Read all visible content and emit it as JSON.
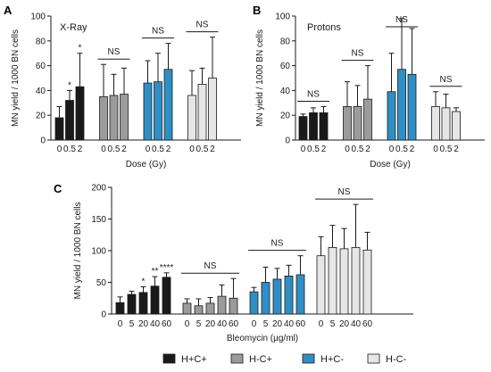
{
  "palette": {
    "black": "#1a1a1a",
    "gray": "#9b9b9b",
    "blue": "#2e8fc6",
    "light": "#e6e6e6",
    "stroke": "#1a1a1a"
  },
  "legend": [
    {
      "label": "H+C+",
      "color": "#1a1a1a"
    },
    {
      "label": "H-C+",
      "color": "#9b9b9b"
    },
    {
      "label": "H+C-",
      "color": "#2e8fc6"
    },
    {
      "label": "H-C-",
      "color": "#e6e6e6"
    }
  ],
  "chart_data": [
    {
      "panel": "A",
      "type": "bar",
      "title": "X-Ray",
      "xlabel": "Dose (Gy)",
      "ylabel": "MN yield / 1000 BN cells",
      "ylim": [
        0,
        100
      ],
      "yticks": [
        0,
        20,
        40,
        60,
        80,
        100
      ],
      "categories": [
        "0",
        "0.5",
        "2"
      ],
      "series": [
        {
          "name": "H+C+",
          "values": [
            18,
            32,
            43
          ],
          "err": [
            9,
            8,
            27
          ],
          "sig": [
            "",
            "*",
            "*"
          ]
        },
        {
          "name": "H-C+",
          "values": [
            35,
            36,
            37
          ],
          "err": [
            26,
            17,
            21
          ],
          "sig": [
            "",
            "",
            ""
          ]
        },
        {
          "name": "H+C-",
          "values": [
            46,
            47,
            57
          ],
          "err": [
            18,
            23,
            21
          ],
          "sig": [
            "",
            "",
            ""
          ]
        },
        {
          "name": "H-C-",
          "values": [
            36,
            45,
            50
          ],
          "err": [
            20,
            13,
            33
          ],
          "sig": [
            "",
            "",
            ""
          ]
        }
      ],
      "group_labels": [
        "",
        "NS",
        "NS",
        "NS"
      ]
    },
    {
      "panel": "B",
      "type": "bar",
      "title": "Protons",
      "xlabel": "Dose (Gy)",
      "ylabel": "MN yield / 1000 BN cells",
      "ylim": [
        0,
        100
      ],
      "yticks": [
        0,
        20,
        40,
        60,
        80,
        100
      ],
      "categories": [
        "0",
        "0.5",
        "2"
      ],
      "series": [
        {
          "name": "H+C+",
          "values": [
            19,
            22,
            22
          ],
          "err": [
            2,
            4,
            5
          ],
          "sig": [
            "",
            "",
            ""
          ]
        },
        {
          "name": "H-C+",
          "values": [
            27,
            27,
            33
          ],
          "err": [
            20,
            17,
            27
          ],
          "sig": [
            "",
            "",
            ""
          ]
        },
        {
          "name": "H+C-",
          "values": [
            39,
            57,
            53
          ],
          "err": [
            31,
            41,
            37
          ],
          "sig": [
            "",
            "",
            ""
          ]
        },
        {
          "name": "H-C-",
          "values": [
            27,
            26,
            23
          ],
          "err": [
            12,
            11,
            3
          ],
          "sig": [
            "",
            "",
            ""
          ]
        }
      ],
      "group_labels": [
        "NS",
        "NS",
        "NS",
        "NS"
      ]
    },
    {
      "panel": "C",
      "type": "bar",
      "title": "",
      "xlabel": "Bleomycin (µg/ml)",
      "ylabel": "MN yield / 1000 BN cells",
      "ylim": [
        0,
        200
      ],
      "yticks": [
        0,
        50,
        100,
        150,
        200
      ],
      "categories": [
        "0",
        "5",
        "20",
        "40",
        "60"
      ],
      "series": [
        {
          "name": "H+C+",
          "values": [
            18,
            31,
            34,
            44,
            58
          ],
          "err": [
            9,
            5,
            9,
            15,
            7
          ],
          "sig": [
            "",
            "",
            "*",
            "**",
            "****"
          ]
        },
        {
          "name": "H-C+",
          "values": [
            17,
            13,
            17,
            28,
            25
          ],
          "err": [
            7,
            11,
            9,
            18,
            31
          ],
          "sig": [
            "",
            "",
            "",
            "",
            ""
          ]
        },
        {
          "name": "H+C-",
          "values": [
            35,
            50,
            55,
            60,
            62
          ],
          "err": [
            7,
            24,
            17,
            17,
            30
          ],
          "sig": [
            "",
            "",
            "",
            "",
            ""
          ]
        },
        {
          "name": "H-C-",
          "values": [
            92,
            105,
            103,
            105,
            101
          ],
          "err": [
            30,
            35,
            32,
            68,
            28
          ],
          "sig": [
            "",
            "",
            "",
            "",
            ""
          ]
        }
      ],
      "group_labels": [
        "",
        "NS",
        "NS",
        "NS"
      ]
    }
  ]
}
